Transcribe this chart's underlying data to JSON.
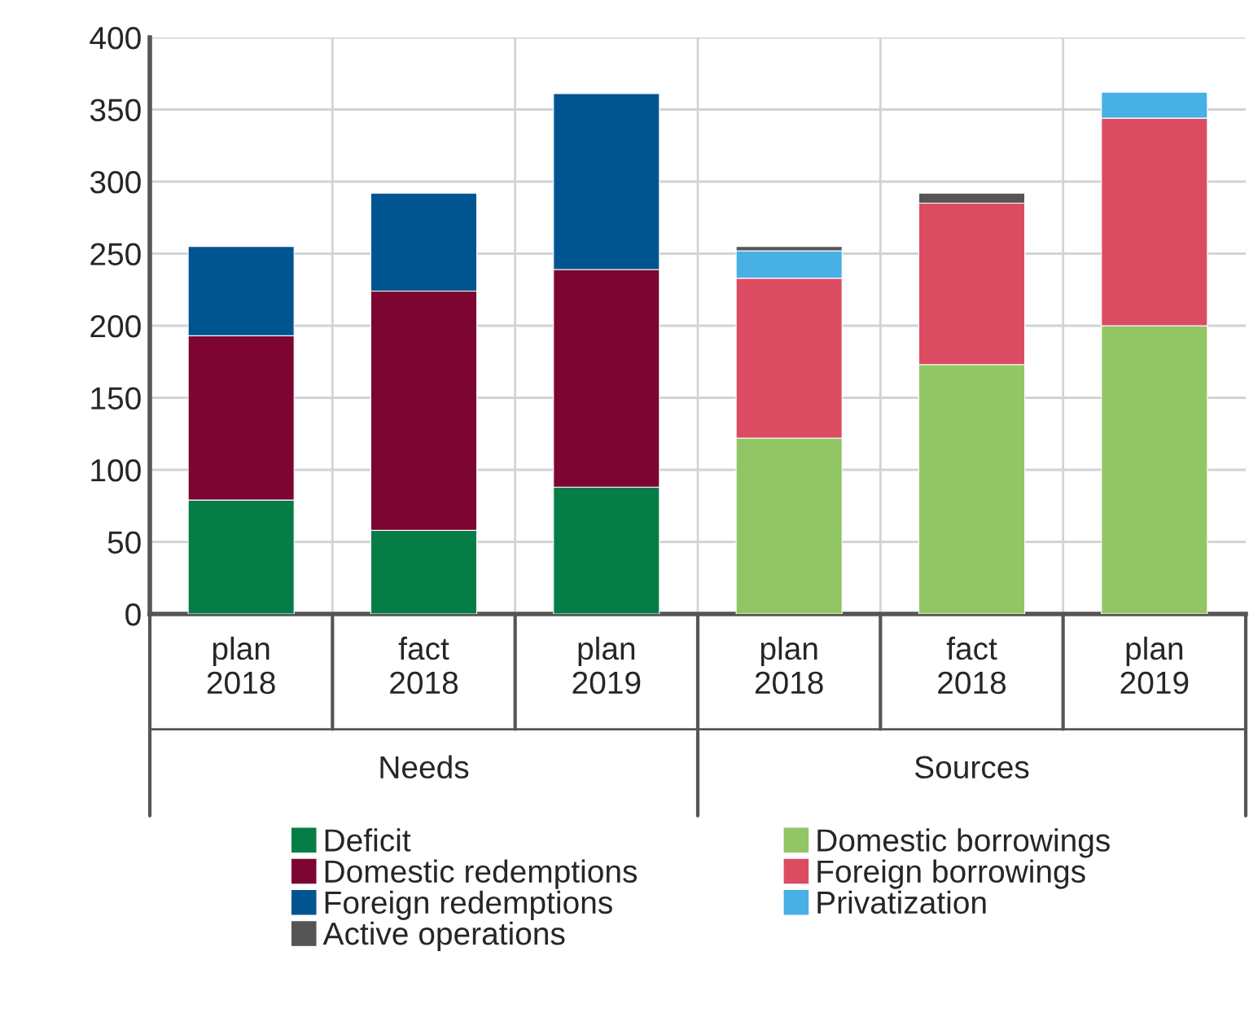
{
  "chart_data": {
    "type": "bar",
    "stacked": true,
    "categories": [
      "plan\n2018",
      "fact\n2018",
      "plan\n2019",
      "plan\n2018",
      "fact\n2018",
      "plan\n2019"
    ],
    "series": [
      {
        "name": "Deficit",
        "color": "#067d46",
        "values": [
          79,
          58,
          88,
          null,
          null,
          null
        ]
      },
      {
        "name": "Domestic redemptions",
        "color": "#7c0532",
        "values": [
          114,
          166,
          151,
          null,
          null,
          null
        ]
      },
      {
        "name": "Foreign redemptions",
        "color": "#005591",
        "values": [
          62,
          68,
          122,
          null,
          null,
          null
        ]
      },
      {
        "name": "Domestic borrowings",
        "color": "#92c664",
        "values": [
          null,
          null,
          null,
          122,
          173,
          200
        ]
      },
      {
        "name": "Foreign borrowings",
        "color": "#db4c63",
        "values": [
          null,
          null,
          null,
          111,
          112,
          144
        ]
      },
      {
        "name": "Privatization",
        "color": "#47b0e4",
        "values": [
          null,
          null,
          null,
          19,
          null,
          18
        ]
      },
      {
        "name": "Active operations",
        "color": "#555555",
        "values": [
          null,
          null,
          null,
          3,
          7,
          null
        ]
      }
    ],
    "annotations": [
      "Needs",
      "Sources"
    ],
    "ylim": [
      0,
      400
    ],
    "yticks": [
      0,
      50,
      100,
      150,
      200,
      250,
      300,
      350,
      400
    ],
    "grid": true,
    "legend": "bottom"
  }
}
